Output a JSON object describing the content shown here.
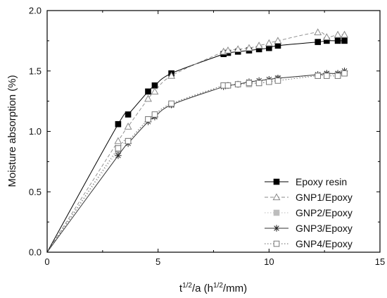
{
  "chart_data": {
    "type": "line",
    "title": "",
    "xlabel_base": "t",
    "xlabel_sup": "1/2",
    "xlabel_mid": "/a (h",
    "xlabel_sup2": "1/2",
    "xlabel_tail": "/mm)",
    "ylabel": "Moisture absorption (%)",
    "xlim": [
      0,
      15
    ],
    "ylim": [
      0.0,
      2.0
    ],
    "xticks": [
      0,
      5,
      10,
      15
    ],
    "xtick_labels": [
      "0",
      "5",
      "10",
      "15"
    ],
    "yticks": [
      0.0,
      0.5,
      1.0,
      1.5,
      2.0
    ],
    "ytick_labels": [
      "0.0",
      "0.5",
      "1.0",
      "1.5",
      "2.0"
    ],
    "grid": false,
    "legend_position": "bottom-right",
    "series": [
      {
        "name": "Epoxy resin",
        "marker": "filled-square",
        "line_style": "solid",
        "color": "#000000",
        "x": [
          0,
          3.2,
          3.65,
          4.55,
          4.85,
          5.6,
          7.95,
          8.15,
          8.6,
          9.1,
          9.55,
          10.0,
          10.4,
          12.2,
          12.6,
          13.1,
          13.4
        ],
        "y": [
          0.0,
          1.06,
          1.14,
          1.33,
          1.38,
          1.48,
          1.64,
          1.65,
          1.66,
          1.67,
          1.68,
          1.69,
          1.71,
          1.74,
          1.75,
          1.75,
          1.75
        ]
      },
      {
        "name": "GNP1/Epoxy",
        "marker": "open-triangle",
        "line_style": "dashed",
        "color": "#888888",
        "x": [
          0,
          3.2,
          3.65,
          4.55,
          4.85,
          5.6,
          7.95,
          8.15,
          8.6,
          9.1,
          9.55,
          10.0,
          10.4,
          12.2,
          12.6,
          13.1,
          13.4
        ],
        "y": [
          0.0,
          0.92,
          1.04,
          1.27,
          1.33,
          1.46,
          1.66,
          1.67,
          1.68,
          1.69,
          1.71,
          1.73,
          1.75,
          1.82,
          1.78,
          1.8,
          1.8
        ]
      },
      {
        "name": "GNP2/Epoxy",
        "marker": "filled-square-gray",
        "line_style": "dotted",
        "color": "#bbbbbb",
        "x": [
          0,
          3.2,
          3.65,
          4.55,
          4.85,
          5.6,
          7.95,
          8.15,
          8.6,
          9.1,
          9.55,
          10.0,
          10.4,
          12.2,
          12.6,
          13.1,
          13.4
        ],
        "y": [
          0.0,
          0.84,
          0.92,
          1.1,
          1.13,
          1.22,
          1.38,
          1.38,
          1.39,
          1.39,
          1.4,
          1.41,
          1.44,
          1.46,
          1.47,
          1.47,
          1.48
        ]
      },
      {
        "name": "GNP3/Epoxy",
        "marker": "asterisk",
        "line_style": "solid",
        "color": "#333333",
        "x": [
          0,
          3.2,
          3.65,
          4.55,
          4.85,
          5.6,
          7.95,
          8.15,
          8.6,
          9.1,
          9.55,
          10.0,
          10.4,
          12.2,
          12.6,
          13.1,
          13.4
        ],
        "y": [
          0.0,
          0.8,
          0.9,
          1.08,
          1.12,
          1.22,
          1.37,
          1.38,
          1.39,
          1.41,
          1.42,
          1.43,
          1.44,
          1.47,
          1.48,
          1.48,
          1.5
        ]
      },
      {
        "name": "GNP4/Epoxy",
        "marker": "open-square",
        "line_style": "dotted",
        "color": "#666666",
        "x": [
          0,
          3.2,
          3.65,
          4.55,
          4.85,
          5.6,
          7.95,
          8.15,
          8.6,
          9.1,
          9.55,
          10.0,
          10.4,
          12.2,
          12.6,
          13.1,
          13.4
        ],
        "y": [
          0.0,
          0.86,
          0.92,
          1.1,
          1.14,
          1.23,
          1.38,
          1.38,
          1.39,
          1.4,
          1.4,
          1.41,
          1.42,
          1.46,
          1.46,
          1.46,
          1.48
        ]
      }
    ]
  }
}
